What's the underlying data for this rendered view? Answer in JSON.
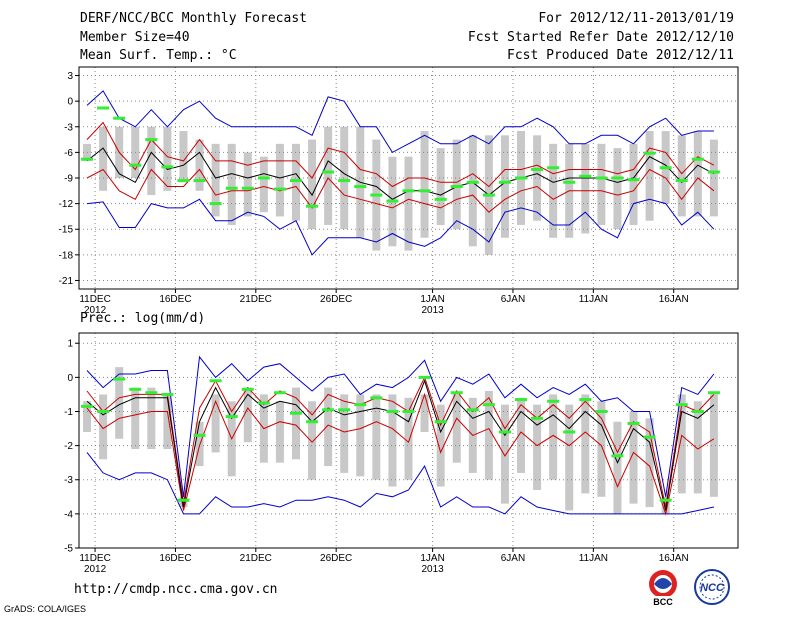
{
  "header": {
    "title": "DERF/NCC/BCC Monthly Forecast",
    "member_size": "Member Size=40",
    "variable": "Mean Surf. Temp.: °C",
    "period": "For 2012/12/11-2013/01/19",
    "started": "Fcst Started Refer Date 2012/12/10",
    "produced": "Fcst Produced Date 2012/12/11"
  },
  "footer": {
    "url": "http://cmdp.ncc.cma.gov.cn",
    "credit": "GrADS: COLA/IGES",
    "logo_left_text": "BCC",
    "logo_right_text": "NCC"
  },
  "colors": {
    "envelope": "#0000cc",
    "quantile": "#cc0000",
    "median": "#000000",
    "observed": "#33ee33",
    "box": "#c8c8c8",
    "grid": "#888888"
  },
  "chart_data": [
    {
      "type": "line",
      "title": "Mean Surf. Temp.: °C",
      "x_tick_labels": [
        "11DEC",
        "16DEC",
        "21DEC",
        "26DEC",
        "1JAN",
        "6JAN",
        "11JAN",
        "16JAN"
      ],
      "x_tick_days": [
        1,
        6,
        11,
        16,
        22,
        27,
        32,
        37
      ],
      "year_labels": [
        {
          "day": 1,
          "text": "2012"
        },
        {
          "day": 22,
          "text": "2013"
        }
      ],
      "x_range": [
        0,
        41
      ],
      "ylim": [
        -22,
        4
      ],
      "y_ticks": [
        3,
        0,
        -3,
        -6,
        -9,
        -12,
        -15,
        -18,
        -21
      ],
      "days": [
        0.5,
        1.5,
        2.5,
        3.5,
        4.5,
        5.5,
        6.5,
        7.5,
        8.5,
        9.5,
        10.5,
        11.5,
        12.5,
        13.5,
        14.5,
        15.5,
        16.5,
        17.5,
        18.5,
        19.5,
        20.5,
        21.5,
        22.5,
        23.5,
        24.5,
        25.5,
        26.5,
        27.5,
        28.5,
        29.5,
        30.5,
        31.5,
        32.5,
        33.5,
        34.5,
        35.5,
        36.5,
        37.5,
        38.5,
        39.5
      ],
      "max": [
        -0.5,
        1.2,
        -2,
        -3,
        -1,
        -3,
        -1,
        0,
        -2,
        -3,
        -3,
        -3,
        -3,
        -3,
        -4,
        0.5,
        0,
        -3,
        -3,
        -6,
        -5,
        -4,
        -5,
        -5,
        -4,
        -5,
        -3,
        -3,
        -2,
        -3,
        -5,
        -5,
        -4,
        -4,
        -5,
        -3,
        -2,
        -4,
        -3.5,
        -3.5
      ],
      "q_hi": [
        -4.5,
        -2.5,
        -6,
        -8,
        -4.5,
        -6.5,
        -7,
        -4.5,
        -7,
        -7,
        -7.5,
        -7,
        -7,
        -7,
        -9,
        -5.5,
        -6,
        -8,
        -8.5,
        -10,
        -9,
        -9,
        -9.5,
        -9.5,
        -8.5,
        -10,
        -8,
        -8,
        -7.5,
        -8.5,
        -8,
        -8,
        -8,
        -8.5,
        -8,
        -5.5,
        -6,
        -8.5,
        -6.5,
        -7.5
      ],
      "median": [
        -7,
        -5.5,
        -8.5,
        -9.5,
        -6,
        -8,
        -7.5,
        -6,
        -9,
        -8.5,
        -9,
        -8.5,
        -9,
        -8.5,
        -11,
        -7,
        -8.5,
        -9.5,
        -10,
        -11.5,
        -10.5,
        -10.5,
        -11,
        -10,
        -9.5,
        -11,
        -9.5,
        -9,
        -8.5,
        -9.5,
        -9,
        -9,
        -9,
        -9.5,
        -9,
        -6.5,
        -7.5,
        -9.5,
        -7.5,
        -8.5
      ],
      "q_lo": [
        -9,
        -8,
        -10.5,
        -11.5,
        -8,
        -10,
        -10,
        -8,
        -11,
        -10.5,
        -10.5,
        -10,
        -10.5,
        -10,
        -12.5,
        -9,
        -11,
        -11.5,
        -12,
        -12.5,
        -11.5,
        -12,
        -12.5,
        -11.5,
        -11,
        -13,
        -11.5,
        -10.5,
        -10,
        -11.5,
        -10.5,
        -10.5,
        -10.5,
        -11,
        -10.5,
        -8,
        -9,
        -11.5,
        -9,
        -10.5
      ],
      "min": [
        -12,
        -11.8,
        -14.8,
        -14.8,
        -12,
        -12.5,
        -12.5,
        -11.5,
        -14,
        -14,
        -13,
        -13.5,
        -15,
        -14,
        -18,
        -16,
        -16,
        -16,
        -16.5,
        -15.5,
        -16.5,
        -17,
        -16,
        -14,
        -15,
        -16.5,
        -13,
        -12.5,
        -13,
        -14.5,
        -14.5,
        -13,
        -15,
        -16,
        -12,
        -11.5,
        -12,
        -14.5,
        -13,
        -15
      ],
      "box_hi": [
        -5,
        -3,
        -3,
        -3,
        -3,
        -3,
        -3.5,
        -4.5,
        -5,
        -5,
        -6,
        -6.5,
        -5,
        -5,
        -4.5,
        -3,
        -3,
        -3,
        -4.5,
        -6.5,
        -6.5,
        -3.5,
        -5.5,
        -4.5,
        -4,
        -4,
        -4,
        -3.5,
        -4,
        -5,
        -5,
        -5,
        -5,
        -5.5,
        -5,
        -3.5,
        -3.5,
        -4,
        -3.5,
        -4.5
      ],
      "box_lo": [
        -7,
        -10.5,
        -9,
        -9,
        -11,
        -10.5,
        -9.5,
        -10.5,
        -13.5,
        -14.5,
        -13.5,
        -13,
        -13.5,
        -14,
        -15,
        -14.5,
        -15,
        -16,
        -17.5,
        -17,
        -17.5,
        -16,
        -14.5,
        -15,
        -17,
        -18,
        -16,
        -14.5,
        -14,
        -16,
        -16,
        -15.5,
        -14.5,
        -15,
        -14.5,
        -14,
        -12,
        -13.5,
        -13.5,
        -13.5
      ],
      "observed": [
        -6.8,
        -0.8,
        -2,
        -7.5,
        -4.5,
        -7.7,
        -9.3,
        -9.3,
        -12,
        -10.2,
        -10.2,
        -9,
        -10.3,
        -9.3,
        -12.3,
        -8.3,
        -9.3,
        -10,
        -11,
        -11.7,
        -10.5,
        -10.5,
        -11.5,
        -10,
        -9.5,
        -11,
        -9.5,
        -9,
        -8,
        -7.8,
        -9.5,
        -8.8,
        -9,
        -9,
        -9.2,
        -6.1,
        -7.8,
        -9.3,
        -6.8,
        -8.3
      ]
    },
    {
      "type": "line",
      "title": "Prec.: log(mm/d)",
      "x_tick_labels": [
        "11DEC",
        "16DEC",
        "21DEC",
        "26DEC",
        "1JAN",
        "6JAN",
        "11JAN",
        "16JAN"
      ],
      "x_tick_days": [
        1,
        6,
        11,
        16,
        22,
        27,
        32,
        37
      ],
      "year_labels": [
        {
          "day": 1,
          "text": "2012"
        },
        {
          "day": 22,
          "text": "2013"
        }
      ],
      "x_range": [
        0,
        41
      ],
      "ylim": [
        -5,
        1.3
      ],
      "y_ticks": [
        1,
        0,
        -1,
        -2,
        -3,
        -4,
        -5
      ],
      "days": [
        0.5,
        1.5,
        2.5,
        3.5,
        4.5,
        5.5,
        6.5,
        7.5,
        8.5,
        9.5,
        10.5,
        11.5,
        12.5,
        13.5,
        14.5,
        15.5,
        16.5,
        17.5,
        18.5,
        19.5,
        20.5,
        21.5,
        22.5,
        23.5,
        24.5,
        25.5,
        26.5,
        27.5,
        28.5,
        29.5,
        30.5,
        31.5,
        32.5,
        33.5,
        34.5,
        35.5,
        36.5,
        37.5,
        38.5,
        39.5
      ],
      "max": [
        0.2,
        -0.3,
        0.1,
        0.1,
        0.2,
        0.2,
        -3.5,
        0.6,
        0,
        0.4,
        -0.1,
        0.3,
        0.4,
        0,
        -0.4,
        0,
        0.1,
        -0.5,
        -0.2,
        -0.3,
        0,
        0.5,
        -0.7,
        0,
        -0.2,
        0.1,
        -0.6,
        -0.2,
        -0.6,
        -0.3,
        -0.5,
        -0.2,
        -0.7,
        -0.6,
        -1,
        -1,
        -3.5,
        -0.3,
        -0.5,
        0.1
      ],
      "q_hi": [
        -0.4,
        -1,
        -0.6,
        -0.5,
        -0.5,
        -0.5,
        -3.7,
        -0.9,
        -0.1,
        -1,
        -0.3,
        -0.8,
        -0.4,
        -0.6,
        -1.1,
        -0.5,
        -0.7,
        -0.8,
        -0.6,
        -0.7,
        -1,
        0,
        -1.4,
        -0.4,
        -1,
        -0.6,
        -1.5,
        -0.8,
        -1.2,
        -0.8,
        -1.2,
        -0.7,
        -1.2,
        -2.2,
        -1.3,
        -1.6,
        -3.8,
        -0.8,
        -1,
        -0.5
      ],
      "median": [
        -0.7,
        -1.1,
        -0.8,
        -0.6,
        -0.6,
        -0.6,
        -3.8,
        -1.3,
        -0.3,
        -1.2,
        -0.5,
        -0.9,
        -0.7,
        -0.8,
        -1.3,
        -0.9,
        -1.1,
        -1,
        -0.9,
        -1,
        -1.3,
        -0.1,
        -1.6,
        -0.7,
        -1.2,
        -1,
        -1.7,
        -1,
        -1.4,
        -1.1,
        -1.5,
        -1,
        -1.4,
        -2.5,
        -1.5,
        -1.9,
        -3.9,
        -1,
        -1.2,
        -0.8
      ],
      "q_lo": [
        -0.9,
        -1.5,
        -1.2,
        -1.1,
        -1,
        -1,
        -3.9,
        -2,
        -0.7,
        -1.8,
        -0.9,
        -1.5,
        -1.3,
        -1.4,
        -1.9,
        -1.4,
        -1.6,
        -1.5,
        -1.3,
        -1.5,
        -1.9,
        -0.5,
        -2.2,
        -1.2,
        -1.7,
        -1.5,
        -2.3,
        -1.6,
        -2,
        -1.7,
        -2,
        -1.6,
        -2,
        -3.2,
        -2.2,
        -2.6,
        -4,
        -1.7,
        -2.1,
        -1.8
      ],
      "min": [
        -2.2,
        -2.8,
        -3,
        -2.8,
        -2.8,
        -3,
        -4,
        -4,
        -3.5,
        -3.8,
        -3.8,
        -3.7,
        -3.8,
        -3.6,
        -3.6,
        -3.5,
        -3.6,
        -3.8,
        -3.4,
        -3.5,
        -3.3,
        -2.6,
        -3.8,
        -3.5,
        -3.8,
        -3.8,
        -4,
        -3.5,
        -3.8,
        -3.9,
        -4,
        -4,
        -4,
        -4,
        -4,
        -4,
        -4,
        -4,
        -3.9,
        -3.8
      ],
      "box_hi": [
        -0.7,
        -0.5,
        0.3,
        -0.3,
        -0.3,
        -0.5,
        -3.5,
        -1.3,
        -0.5,
        -0.7,
        -0.3,
        -0.5,
        -0.7,
        -0.3,
        -0.7,
        -0.3,
        -0.5,
        -0.5,
        -0.5,
        -0.5,
        -0.6,
        -0.5,
        -0.8,
        -0.5,
        -0.6,
        -0.4,
        -0.8,
        -0.6,
        -0.8,
        -0.5,
        -0.8,
        -0.5,
        -0.7,
        -1.3,
        -1,
        -1.2,
        -3.5,
        -0.5,
        -0.7,
        -0.5
      ],
      "box_lo": [
        -1.6,
        -2.4,
        -1.8,
        -2.1,
        -2.1,
        -2.1,
        -3.8,
        -2.6,
        -2.2,
        -2.9,
        -1.9,
        -2.5,
        -2.5,
        -2.4,
        -3,
        -2.6,
        -2.8,
        -2.9,
        -3,
        -3.2,
        -3,
        -1.6,
        -3.2,
        -2.5,
        -2.8,
        -3,
        -3.7,
        -2.8,
        -3.3,
        -3,
        -3.9,
        -3.4,
        -3.5,
        -4,
        -3.7,
        -3.8,
        -4,
        -3.4,
        -3.4,
        -3.5
      ],
      "observed": [
        -0.85,
        -1,
        -0.05,
        -0.35,
        -0.45,
        -0.5,
        -3.6,
        -1.7,
        -0.1,
        -1.15,
        -0.35,
        -0.75,
        -0.45,
        -1.05,
        -1.3,
        -0.95,
        -0.95,
        -0.8,
        -0.6,
        -1,
        -1,
        0,
        -1.3,
        -0.45,
        -0.95,
        -0.8,
        -1.6,
        -0.65,
        -1.2,
        -0.7,
        -1.6,
        -0.65,
        -1,
        -2.3,
        -1.35,
        -1.75,
        -3.6,
        -0.8,
        -1,
        -0.45
      ]
    }
  ]
}
